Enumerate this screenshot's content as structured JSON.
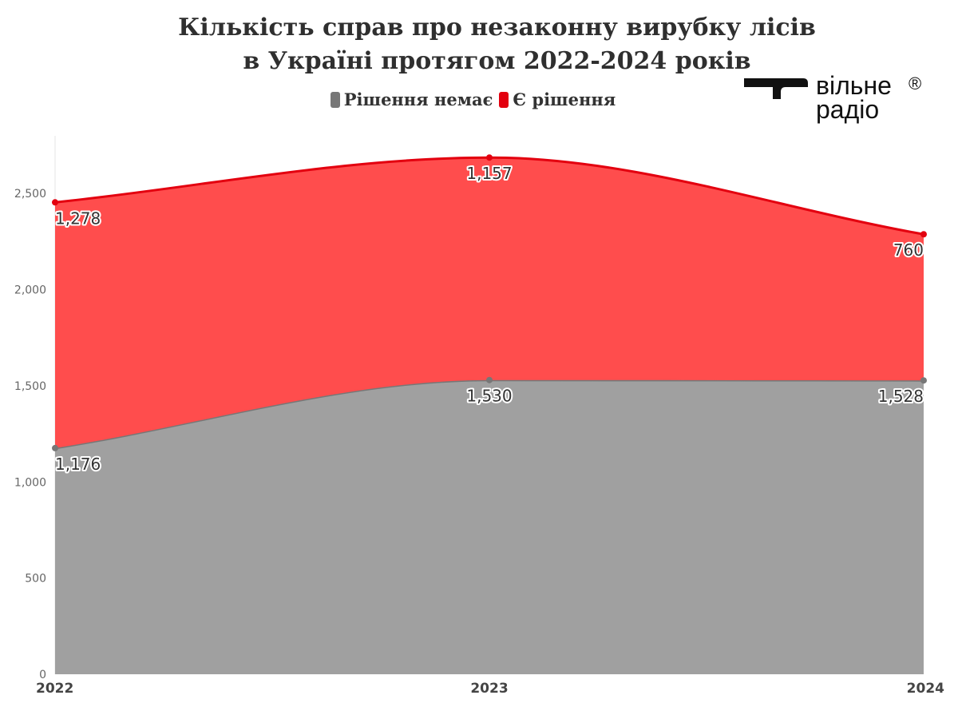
{
  "title": {
    "line1": "Кількість  справ про незаконну вирубку лісів",
    "line2": "в Україні протягом 2022-2024 років"
  },
  "legend": [
    {
      "label": "Рішення немає",
      "color": "#777777"
    },
    {
      "label": "Є рішення",
      "color": "#e3000f"
    }
  ],
  "logo": {
    "line1": "вільне",
    "line2": "радіо",
    "mark": "®",
    "icon": "logo-mark-icon"
  },
  "chart_data": {
    "type": "area",
    "stacked": true,
    "categories": [
      "2022",
      "2023",
      "2024"
    ],
    "series": [
      {
        "name": "Рішення немає",
        "values": [
          1176,
          1530,
          1528
        ],
        "color": "#a0a0a0",
        "line_color": "#777777",
        "labels": [
          "1,176",
          "1,530",
          "1,528"
        ]
      },
      {
        "name": "Є рішення",
        "values": [
          1278,
          1157,
          760
        ],
        "color": "#ff4d4d",
        "line_color": "#e3000f",
        "labels": [
          "1,278",
          "1,157",
          "760"
        ]
      }
    ],
    "ylim": [
      0,
      2800
    ],
    "yticks": [
      0,
      500,
      1000,
      1500,
      2000,
      2500
    ],
    "ytick_labels": [
      "0",
      "500",
      "1,000",
      "1,500",
      "2,000",
      "2,500"
    ],
    "smooth": true,
    "grid": false
  }
}
